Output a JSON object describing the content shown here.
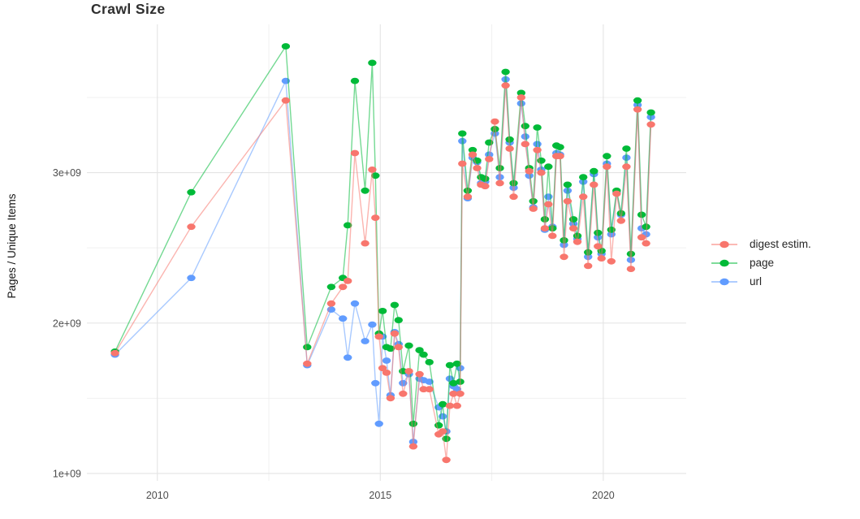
{
  "title": "Crawl Size",
  "y_axis": {
    "title": "Pages / Unique Items",
    "ticks": [
      "1e+09",
      "2e+09",
      "3e+09"
    ],
    "tick_values": [
      1,
      2,
      3
    ]
  },
  "x_axis": {
    "ticks": [
      "2010",
      "2015",
      "2020"
    ],
    "tick_values": [
      2010,
      2015,
      2020
    ]
  },
  "legend": {
    "items": [
      {
        "label": "digest estim.",
        "color": "#F8766D"
      },
      {
        "label": "page",
        "color": "#00BA38"
      },
      {
        "label": "url",
        "color": "#619CFF"
      }
    ]
  },
  "colors": {
    "background": "#ffffff",
    "grid_major": "#E4E4E4",
    "grid_minor": "#F0F0F0",
    "axis_text": "#4D4D4D",
    "title_text": "#2E2E2E",
    "digest": "#F8766D",
    "page": "#00BA38",
    "url": "#619CFF"
  },
  "chart_data": {
    "type": "line",
    "title": "Crawl Size",
    "xlabel": "",
    "ylabel": "Pages / Unique Items",
    "x_unit": "year (decimal, one point per crawl)",
    "y_unit": "count, billions (1e9)",
    "xlim": [
      2008.42,
      2021.86
    ],
    "ylim": [
      0.924,
      3.986
    ],
    "x_major_gridlines": [
      2010,
      2015,
      2020
    ],
    "x_minor_gridlines": [
      2012.5,
      2017.5
    ],
    "y_major_gridlines": [
      1,
      2,
      3
    ],
    "y_minor_gridlines": [
      1.5,
      2.5,
      3.5
    ],
    "grid": true,
    "legend_position": "right",
    "marker": "ellipse",
    "x": [
      2009.05,
      2010.76,
      2012.88,
      2013.36,
      2013.9,
      2014.16,
      2014.27,
      2014.43,
      2014.66,
      2014.82,
      2014.89,
      2014.97,
      2015.05,
      2015.14,
      2015.23,
      2015.32,
      2015.41,
      2015.51,
      2015.64,
      2015.74,
      2015.88,
      2015.97,
      2016.1,
      2016.31,
      2016.4,
      2016.48,
      2016.56,
      2016.64,
      2016.72,
      2016.79,
      2016.84,
      2016.96,
      2017.07,
      2017.17,
      2017.26,
      2017.35,
      2017.44,
      2017.57,
      2017.68,
      2017.81,
      2017.9,
      2017.99,
      2018.16,
      2018.25,
      2018.34,
      2018.43,
      2018.52,
      2018.61,
      2018.69,
      2018.77,
      2018.86,
      2018.95,
      2019.03,
      2019.12,
      2019.2,
      2019.33,
      2019.42,
      2019.55,
      2019.66,
      2019.79,
      2019.88,
      2019.96,
      2020.08,
      2020.18,
      2020.3,
      2020.4,
      2020.52,
      2020.62,
      2020.77,
      2020.86,
      2020.96,
      2021.07
    ],
    "series": [
      {
        "name": "digest estim.",
        "color": "#F8766D",
        "values": [
          1.8,
          2.64,
          3.48,
          1.73,
          2.13,
          2.24,
          2.28,
          3.13,
          2.53,
          3.02,
          2.7,
          1.91,
          1.7,
          1.67,
          1.5,
          1.93,
          1.84,
          1.53,
          1.68,
          1.18,
          1.66,
          1.56,
          1.56,
          1.26,
          1.28,
          1.09,
          1.45,
          1.53,
          1.45,
          1.53,
          3.06,
          2.84,
          3.12,
          3.03,
          2.92,
          2.91,
          3.09,
          3.34,
          2.93,
          3.58,
          3.16,
          2.84,
          3.5,
          3.19,
          3.01,
          2.76,
          3.15,
          3.0,
          2.63,
          2.79,
          2.58,
          3.11,
          3.11,
          2.44,
          2.81,
          2.63,
          2.54,
          2.84,
          2.38,
          2.92,
          2.51,
          2.43,
          3.04,
          2.41,
          2.86,
          2.68,
          3.04,
          2.36,
          3.42,
          2.57,
          2.53,
          3.32
        ]
      },
      {
        "name": "page",
        "color": "#00BA38",
        "values": [
          1.81,
          2.87,
          3.84,
          1.84,
          2.24,
          2.3,
          2.65,
          3.61,
          2.88,
          3.73,
          2.98,
          1.93,
          2.08,
          1.84,
          1.83,
          2.12,
          2.02,
          1.68,
          1.85,
          1.33,
          1.82,
          1.79,
          1.74,
          1.32,
          1.46,
          1.23,
          1.72,
          1.6,
          1.73,
          1.61,
          3.26,
          2.88,
          3.15,
          3.08,
          2.97,
          2.96,
          3.2,
          3.29,
          3.03,
          3.67,
          3.22,
          2.93,
          3.53,
          3.31,
          3.03,
          2.81,
          3.3,
          3.08,
          2.69,
          3.04,
          2.63,
          3.18,
          3.17,
          2.55,
          2.92,
          2.69,
          2.58,
          2.97,
          2.47,
          3.01,
          2.6,
          2.48,
          3.11,
          2.62,
          2.88,
          2.73,
          3.16,
          2.46,
          3.48,
          2.72,
          2.64,
          3.4
        ]
      },
      {
        "name": "url",
        "color": "#619CFF",
        "values": [
          1.79,
          2.3,
          3.61,
          1.72,
          2.09,
          2.03,
          1.77,
          2.13,
          1.88,
          1.99,
          1.6,
          1.33,
          1.91,
          1.75,
          1.52,
          1.94,
          1.86,
          1.6,
          1.66,
          1.21,
          1.63,
          1.62,
          1.61,
          1.44,
          1.38,
          1.28,
          1.63,
          1.58,
          1.56,
          1.7,
          3.21,
          2.83,
          3.1,
          3.07,
          2.93,
          2.94,
          3.12,
          3.26,
          2.97,
          3.62,
          3.2,
          2.9,
          3.46,
          3.24,
          2.98,
          2.77,
          3.19,
          3.02,
          2.62,
          2.84,
          2.64,
          3.13,
          3.12,
          2.52,
          2.88,
          2.66,
          2.56,
          2.94,
          2.44,
          2.99,
          2.57,
          2.46,
          3.06,
          2.59,
          2.87,
          2.72,
          3.1,
          2.42,
          3.45,
          2.63,
          2.59,
          3.37
        ]
      }
    ]
  }
}
